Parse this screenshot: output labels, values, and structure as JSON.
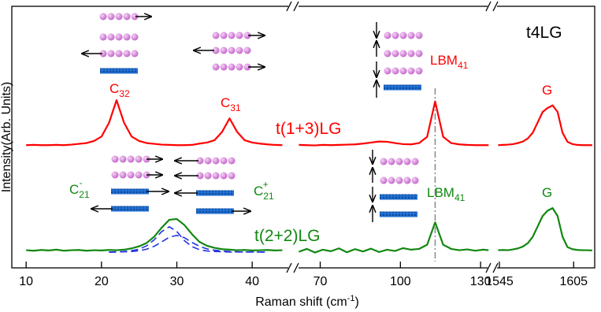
{
  "chart_data": {
    "type": "line",
    "xlabel": {
      "text": "Raman shift (cm",
      "sup": "-1",
      "tail": ")"
    },
    "ylabel": "Intensity(Arb. Units)",
    "xlims": [
      [
        8.1,
        45
      ],
      [
        61,
        133.5
      ],
      [
        1541.2,
        1622
      ]
    ],
    "xticks": [
      [
        10,
        20,
        30,
        40
      ],
      [
        70,
        100,
        130
      ],
      [
        1545,
        1605
      ]
    ],
    "ylim": [
      0,
      100
    ],
    "vline_x": 113,
    "annotations": [
      {
        "text": "t4LG",
        "color": "#000000"
      },
      {
        "text": "C",
        "sub": "32",
        "color": "#ff0000"
      },
      {
        "text": "C",
        "sub": "31",
        "color": "#ff0000"
      },
      {
        "text": "LBM",
        "sub": "41",
        "color": "#ff0000"
      },
      {
        "text": "G",
        "color": "#ff0000"
      },
      {
        "text": "t(1+3)LG",
        "color": "#ff0000"
      },
      {
        "text": "C",
        "sub": "21",
        "sup": "-",
        "color": "#118811"
      },
      {
        "text": "C",
        "sub": "21",
        "sup": "+",
        "color": "#118811"
      },
      {
        "text": "LBM",
        "sub": "41",
        "color": "#118811"
      },
      {
        "text": "G",
        "color": "#118811"
      },
      {
        "text": "t(2+2)LG",
        "color": "#118811"
      }
    ],
    "x": [
      10,
      11,
      12,
      13,
      14,
      15,
      16,
      17,
      18,
      19,
      20,
      21,
      22,
      23,
      24,
      25,
      26,
      27,
      28,
      29,
      30,
      31,
      32,
      33,
      34,
      35,
      36,
      37,
      38,
      39,
      40,
      41,
      42,
      43,
      44,
      50,
      62,
      65,
      68,
      71,
      74,
      77,
      80,
      83,
      86,
      89,
      92,
      95,
      98,
      101,
      104,
      107,
      110,
      113,
      116,
      119,
      122,
      125,
      128,
      131,
      133,
      1000,
      1544,
      1548,
      1552,
      1556,
      1560,
      1564,
      1568,
      1572,
      1576,
      1580,
      1584,
      1588,
      1592,
      1596,
      1600,
      1604,
      1608,
      1612,
      1616,
      1620
    ],
    "series": [
      {
        "color": "#ff0000",
        "style": "solid",
        "values": [
          47.2,
          47.3,
          47.2,
          47.2,
          47.3,
          47.2,
          47.4,
          47.7,
          48.0,
          48.8,
          50.5,
          55.8,
          64.5,
          55.8,
          50.5,
          48.8,
          48.0,
          47.7,
          47.4,
          47.3,
          47.2,
          47.2,
          47.3,
          47.8,
          48.2,
          49.1,
          52.3,
          57.5,
          52.3,
          49.1,
          48.2,
          47.8,
          47.5,
          47.3,
          47.2,
          null,
          47.3,
          47.2,
          47.1,
          47.3,
          47.2,
          47.3,
          47.4,
          47.5,
          47.8,
          48.2,
          48.6,
          48.5,
          48.0,
          47.6,
          47.5,
          48.0,
          50.4,
          64.0,
          50.4,
          48.0,
          47.5,
          47.3,
          47.2,
          47.2,
          47.2,
          null,
          47.2,
          47.3,
          47.4,
          47.6,
          48.0,
          48.6,
          49.8,
          52.0,
          56.0,
          60.0,
          61.5,
          62.5,
          60.0,
          52.0,
          48.5,
          47.6,
          47.3,
          47.2,
          47.2,
          47.2
        ]
      },
      {
        "color": "#118811",
        "style": "solid",
        "values": [
          6.8,
          6.6,
          6.9,
          6.7,
          7.0,
          6.6,
          6.8,
          6.9,
          6.6,
          6.8,
          6.7,
          6.9,
          6.8,
          7.0,
          7.5,
          8.3,
          9.6,
          12.0,
          15.5,
          18.5,
          18.8,
          16.5,
          13.0,
          10.0,
          8.5,
          7.7,
          7.2,
          7.0,
          6.8,
          6.9,
          6.7,
          6.8,
          6.9,
          6.7,
          6.8,
          null,
          6.2,
          7.3,
          5.9,
          7.0,
          6.4,
          7.5,
          6.0,
          7.2,
          6.3,
          7.4,
          6.1,
          7.0,
          6.5,
          7.6,
          7.0,
          7.3,
          8.9,
          17.5,
          8.9,
          7.3,
          6.8,
          7.1,
          6.6,
          7.0,
          6.8,
          null,
          6.8,
          6.9,
          6.8,
          7.1,
          7.5,
          8.2,
          9.5,
          12.0,
          16.0,
          20.0,
          22.0,
          23.0,
          20.0,
          12.0,
          8.0,
          7.2,
          6.9,
          6.8,
          6.8,
          6.7
        ]
      },
      {
        "color": "#2233dd",
        "style": "dashed",
        "values": [
          null,
          null,
          null,
          null,
          null,
          null,
          null,
          null,
          null,
          null,
          null,
          6.1,
          6.2,
          6.3,
          6.6,
          7.2,
          8.5,
          10.8,
          14.0,
          15.8,
          14.0,
          10.5,
          8.2,
          7.0,
          6.5,
          6.3,
          6.2,
          6.1,
          6.1,
          6.1,
          6.1,
          6.1,
          6.1,
          null,
          null,
          null,
          null,
          null,
          null,
          null,
          null,
          null,
          null,
          null,
          null,
          null,
          null,
          null,
          null,
          null,
          null,
          null,
          null,
          null,
          null,
          null,
          null,
          null,
          null,
          null,
          null,
          null,
          null,
          null,
          null,
          null,
          null,
          null,
          null,
          null,
          null,
          null,
          null,
          null,
          null,
          null,
          null,
          null,
          null,
          null,
          null,
          null
        ]
      },
      {
        "color": "#2233dd",
        "style": "dashed",
        "values": [
          null,
          null,
          null,
          null,
          null,
          null,
          null,
          null,
          null,
          null,
          null,
          6.0,
          6.1,
          6.2,
          6.3,
          6.6,
          7.2,
          8.3,
          10.0,
          11.8,
          12.5,
          11.6,
          9.8,
          8.3,
          7.3,
          6.8,
          6.5,
          6.3,
          6.2,
          6.1,
          6.1,
          6.1,
          6.0,
          null,
          null,
          null,
          null,
          null,
          null,
          null,
          null,
          null,
          null,
          null,
          null,
          null,
          null,
          null,
          null,
          null,
          null,
          null,
          null,
          null,
          null,
          null,
          null,
          null,
          null,
          null,
          null,
          null,
          null,
          null,
          null,
          null,
          null,
          null,
          null,
          null,
          null,
          null,
          null,
          null,
          null,
          null,
          null,
          null,
          null,
          null,
          null,
          null
        ]
      }
    ]
  }
}
